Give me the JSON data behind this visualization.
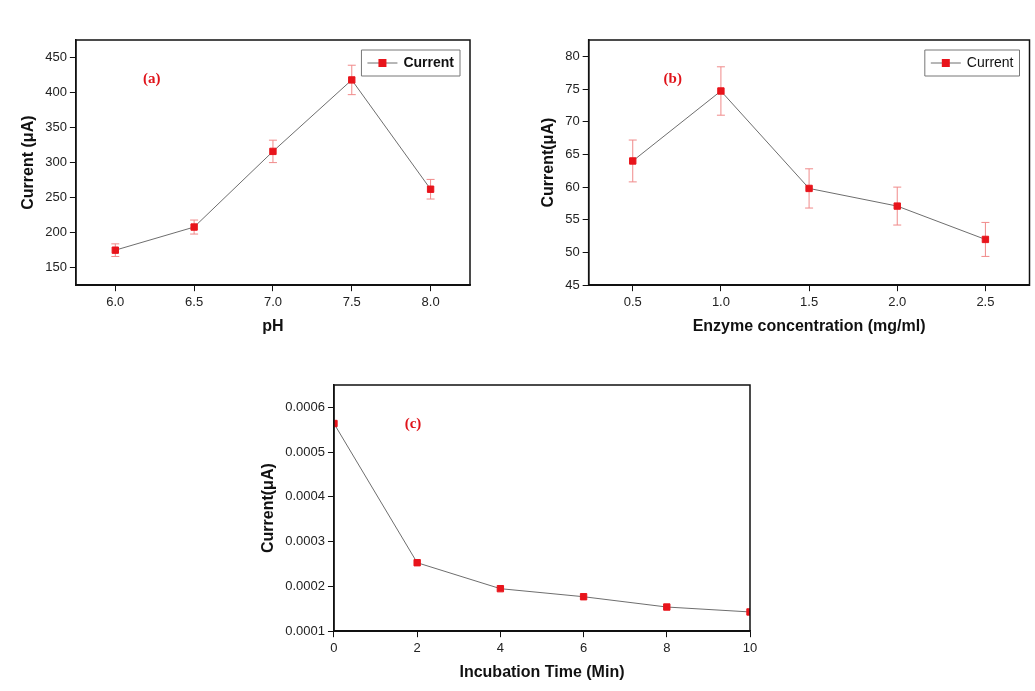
{
  "chart_data": [
    {
      "type": "line",
      "xlabel": "pH",
      "ylabel": "Current (μA)",
      "annotations": [
        "(a)"
      ],
      "x": [
        6.0,
        6.5,
        7.0,
        7.5,
        8.0
      ],
      "series": [
        {
          "name": "Current",
          "color": "#e8141b",
          "values": [
            175,
            208,
            316,
            418,
            262
          ],
          "errors": [
            9,
            10,
            16,
            21,
            14
          ]
        }
      ],
      "xlim": [
        5.75,
        8.25
      ],
      "xticks": [
        {
          "value": 6,
          "label": "6.0"
        },
        {
          "value": 6.5,
          "label": "6.5"
        },
        {
          "value": 7,
          "label": "7.0"
        },
        {
          "value": 7.5,
          "label": "7.5"
        },
        {
          "value": 8,
          "label": "8.0"
        }
      ],
      "ylim": [
        125,
        475
      ],
      "yticks": [
        150,
        200,
        250,
        300,
        350,
        400,
        450
      ],
      "grid": false,
      "legend": "top right",
      "marker": "square",
      "line_style": "solid"
    },
    {
      "type": "line",
      "xlabel": "Enzyme concentration (mg/ml)",
      "ylabel": "Current(μA)",
      "annotations": [
        "(b)"
      ],
      "x": [
        0.5,
        1.0,
        1.5,
        2.0,
        2.5
      ],
      "series": [
        {
          "name": "Current",
          "color": "#e8141b",
          "values": [
            64,
            74.7,
            59.8,
            57.1,
            52
          ],
          "errors": [
            3.2,
            3.7,
            3,
            2.9,
            2.6
          ]
        }
      ],
      "xlim": [
        0.25,
        2.75
      ],
      "xticks": [
        0.5,
        {
          "value": 1,
          "label": "1.0"
        },
        1.5,
        {
          "value": 2,
          "label": "2.0"
        },
        2.5
      ],
      "ylim": [
        45,
        82.5
      ],
      "yticks": [
        45,
        50,
        55,
        60,
        65,
        70,
        75,
        80
      ],
      "grid": false,
      "legend": "top right",
      "marker": "square",
      "line_style": "solid"
    },
    {
      "type": "line",
      "xlabel": "Incubation Time (Min)",
      "ylabel": "Current(μA)",
      "annotations": [
        "(c)"
      ],
      "x": [
        0,
        2,
        4,
        6,
        8,
        10
      ],
      "series": [
        {
          "color": "#e8141b",
          "values": [
            0.000564,
            0.000253,
            0.000195,
            0.000177,
            0.000154,
            0.000143
          ]
        }
      ],
      "xlim": [
        0,
        10
      ],
      "xticks": [
        0,
        2,
        4,
        6,
        8,
        10
      ],
      "ylim": [
        0.0001,
        0.00065
      ],
      "yticks": [
        0.0001,
        0.0002,
        0.0003,
        0.0004,
        0.0005,
        0.0006
      ],
      "grid": false,
      "marker": "square",
      "line_style": "solid"
    }
  ]
}
